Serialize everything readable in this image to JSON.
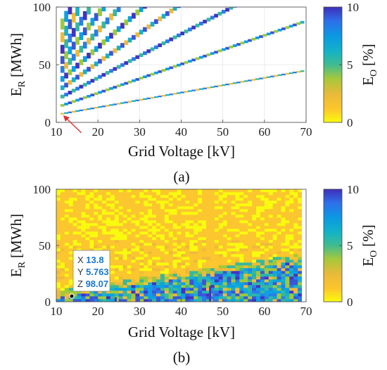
{
  "chart_data": [
    {
      "type": "heatmap",
      "panel": "(a)",
      "xlabel": "Grid Voltage [kV]",
      "ylabel_main": "E",
      "ylabel_sub": "R",
      "ylabel_unit": "[MWh]",
      "xlim": [
        10,
        70
      ],
      "ylim": [
        0,
        100
      ],
      "xticks": [
        10,
        20,
        30,
        40,
        50,
        60,
        70
      ],
      "yticks": [
        0,
        50,
        100
      ],
      "grid": true,
      "colorbar": {
        "label_main": "E",
        "label_sub": "O",
        "label_unit": "[%]",
        "range": [
          0,
          10
        ],
        "ticks": [
          0,
          5,
          10
        ]
      },
      "description_series": [
        {
          "slope": 0.64,
          "intercept": 0.5
        },
        {
          "slope": 1.25,
          "intercept": 1.0
        },
        {
          "slope": 1.9,
          "intercept": 1.5
        },
        {
          "slope": 2.55,
          "intercept": 2.0
        },
        {
          "slope": 3.2,
          "intercept": 2.5
        },
        {
          "slope": 3.9,
          "intercept": 3.0
        },
        {
          "slope": 4.6,
          "intercept": 3.5
        },
        {
          "slope": 5.4,
          "intercept": 4.0
        },
        {
          "slope": 6.3,
          "intercept": 4.5
        },
        {
          "slope": 7.3,
          "intercept": 5.0
        }
      ],
      "annotation_arrow_point": {
        "x": 11.5,
        "y": 8
      }
    },
    {
      "type": "heatmap",
      "panel": "(b)",
      "xlabel": "Grid Voltage [kV]",
      "ylabel_main": "E",
      "ylabel_sub": "R",
      "ylabel_unit": "[MWh]",
      "xlim": [
        10,
        70
      ],
      "ylim": [
        0,
        100
      ],
      "xticks": [
        10,
        20,
        30,
        40,
        50,
        60,
        70
      ],
      "yticks": [
        0,
        50,
        100
      ],
      "colorbar": {
        "label_main": "E",
        "label_sub": "O",
        "label_unit": "[%]",
        "range": [
          0,
          10
        ],
        "ticks": [
          0,
          5,
          10
        ]
      },
      "datatip": {
        "X": "13.8",
        "Y": "5.763",
        "Z": "98.07"
      }
    }
  ],
  "colormap": [
    "#f9fb0e",
    "#fbc62f",
    "#f0b93b",
    "#9fc93a",
    "#37b89d",
    "#1ab2c6",
    "#0aa2e1",
    "#297deb",
    "#3856d8",
    "#4233c2"
  ]
}
